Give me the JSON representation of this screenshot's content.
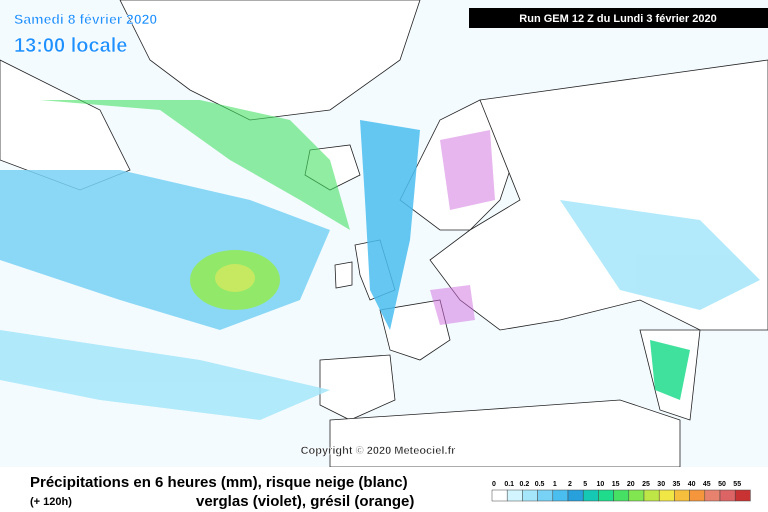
{
  "header": {
    "date": "Samedi 8 février 2020",
    "time": "13:00 locale",
    "run": "Run GEM 12 Z du Lundi 3 février 2020"
  },
  "copyright": "Copyright © 2020 Meteociel.fr",
  "caption": {
    "line1": "Précipitations en 6 heures (mm), risque neige (blanc)",
    "lead": "(+ 120h)",
    "line2": "verglas (violet), grésil (orange)"
  },
  "legend": {
    "levels": [
      "0",
      "0.1",
      "0.2",
      "0.5",
      "1",
      "2",
      "5",
      "10",
      "15",
      "20",
      "25",
      "30",
      "35",
      "40",
      "45",
      "50",
      "55"
    ],
    "colors": [
      "#ffffff",
      "#d2f5ff",
      "#a5e6fa",
      "#78d2f5",
      "#4bbef0",
      "#28a0dc",
      "#14c8b4",
      "#1edc8c",
      "#46e164",
      "#82e650",
      "#bee646",
      "#f0e646",
      "#f5be3c",
      "#f5963c",
      "#e6826e",
      "#dc6464",
      "#c83232"
    ]
  }
}
